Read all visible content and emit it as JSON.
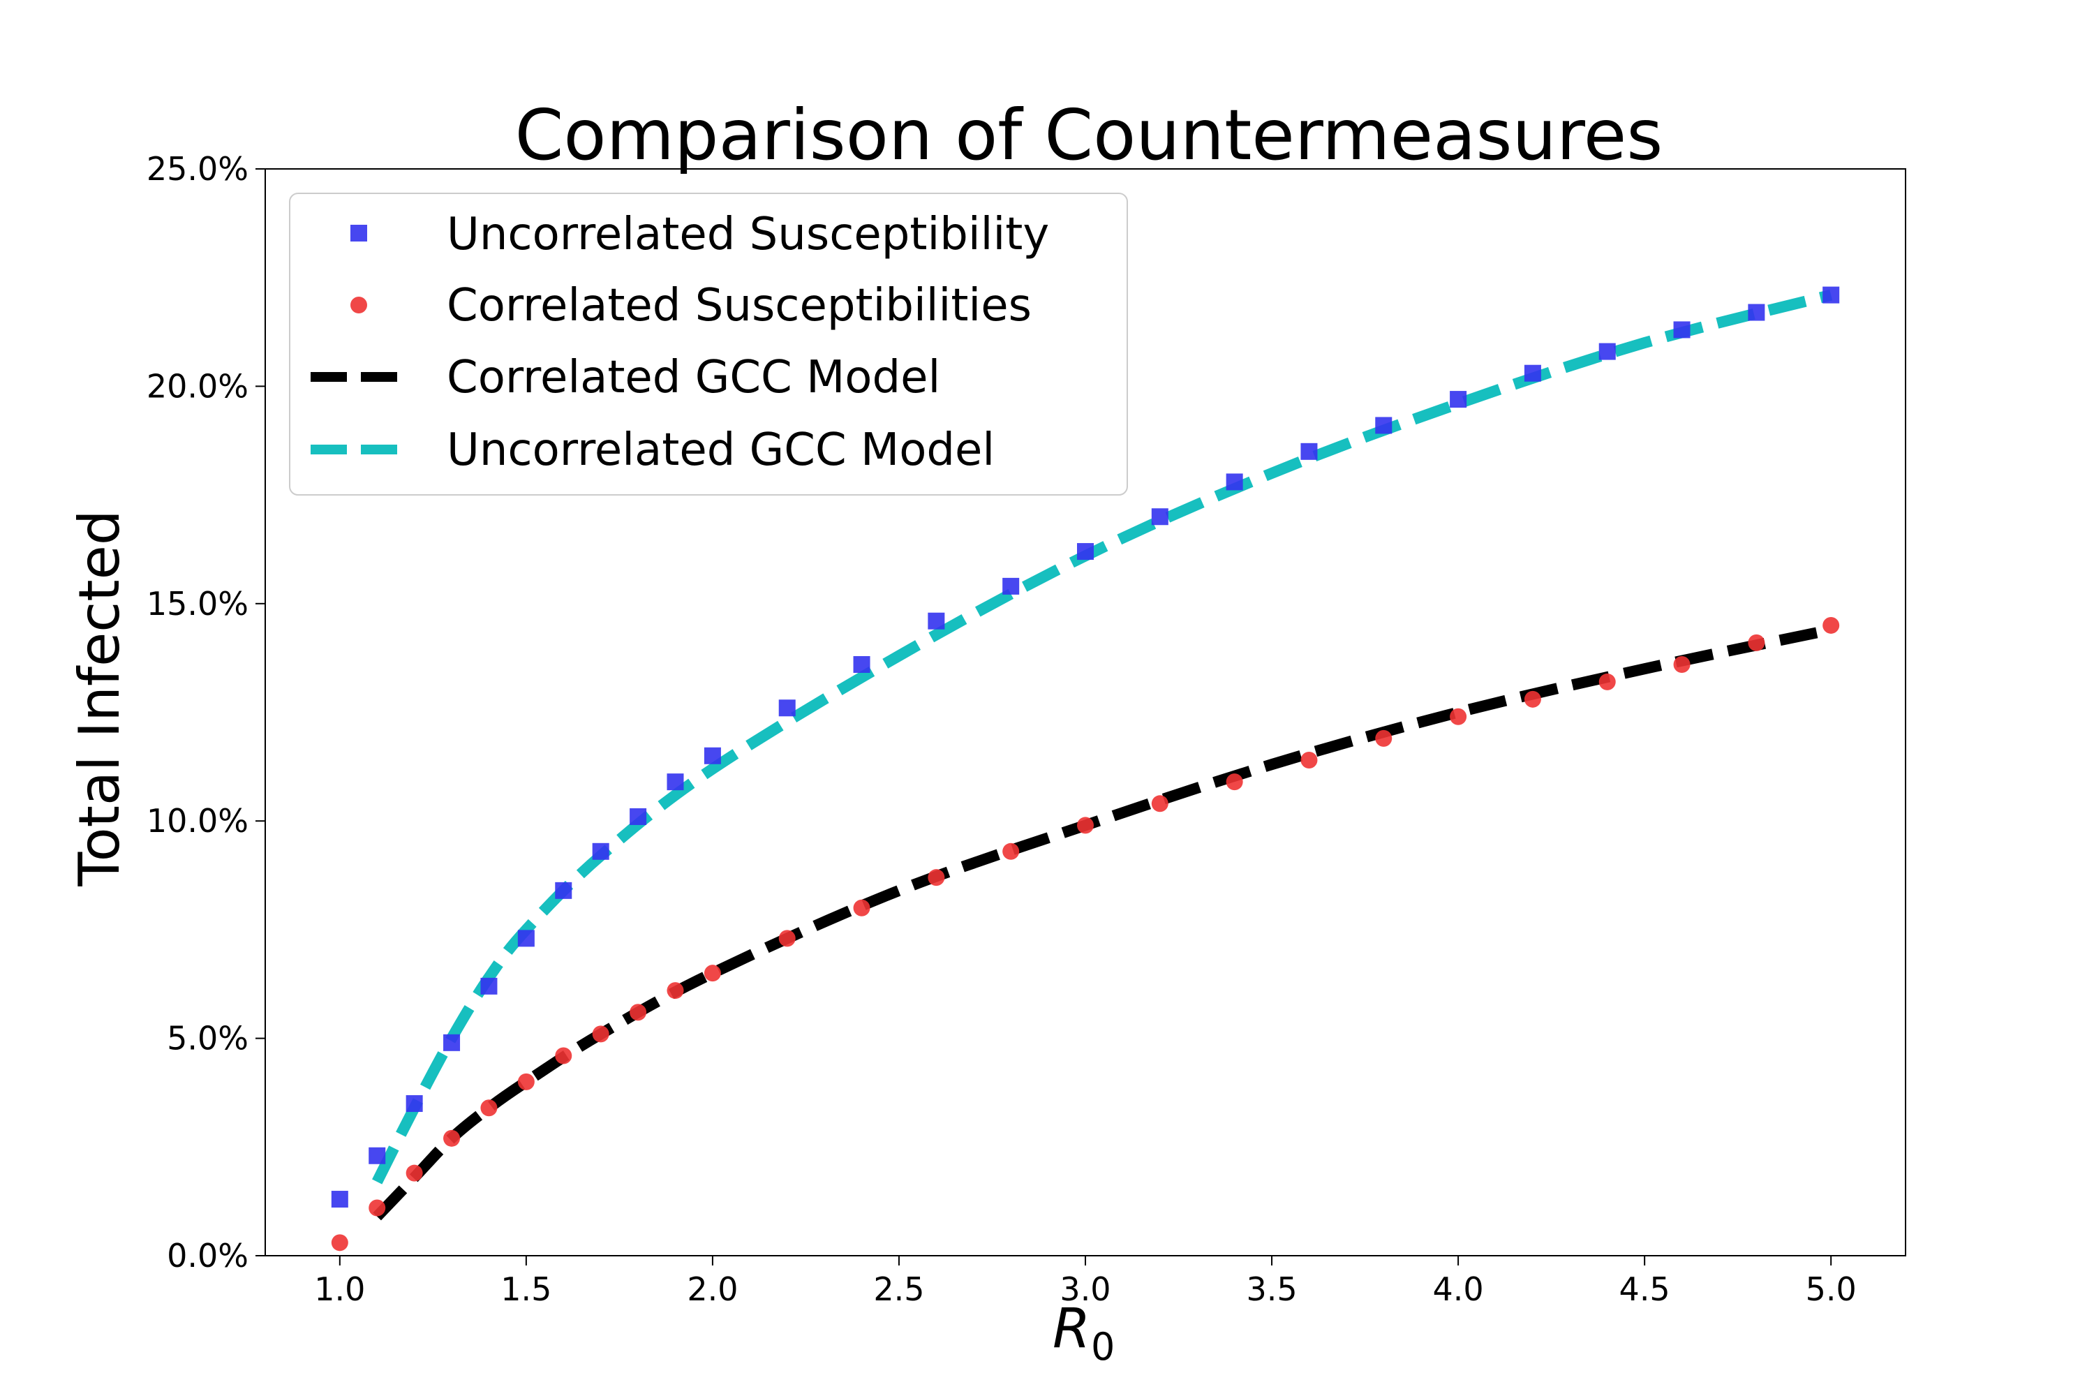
{
  "chart_data": {
    "type": "line",
    "title": "Comparison of Countermeasures",
    "xlabel": "R",
    "xlabel_subscript": "0",
    "ylabel": "Total Infected",
    "xlim": [
      0.8,
      5.2
    ],
    "ylim": [
      0,
      25
    ],
    "x_ticks": [
      1.0,
      1.5,
      2.0,
      2.5,
      3.0,
      3.5,
      4.0,
      4.5,
      5.0
    ],
    "x_tick_labels": [
      "1.0",
      "1.5",
      "2.0",
      "2.5",
      "3.0",
      "3.5",
      "4.0",
      "4.5",
      "5.0"
    ],
    "y_ticks": [
      0,
      5,
      10,
      15,
      20,
      25
    ],
    "y_tick_labels": [
      "0.0%",
      "5.0%",
      "10.0%",
      "15.0%",
      "20.0%",
      "25.0%"
    ],
    "legend_position": "top-left",
    "grid": false,
    "series": [
      {
        "name": "Uncorrelated Susceptibility",
        "style": "markers",
        "marker": "square",
        "color": "#3333ee",
        "x": [
          1.0,
          1.1,
          1.2,
          1.3,
          1.4,
          1.5,
          1.6,
          1.7,
          1.8,
          1.9,
          2.0,
          2.2,
          2.4,
          2.6,
          2.8,
          3.0,
          3.2,
          3.4,
          3.6,
          3.8,
          4.0,
          4.2,
          4.4,
          4.6,
          4.8,
          5.0
        ],
        "y": [
          1.3,
          2.3,
          3.5,
          4.9,
          6.2,
          7.3,
          8.4,
          9.3,
          10.1,
          10.9,
          11.5,
          12.6,
          13.6,
          14.6,
          15.4,
          16.2,
          17.0,
          17.8,
          18.5,
          19.1,
          19.7,
          20.3,
          20.8,
          21.3,
          21.7,
          22.1
        ]
      },
      {
        "name": "Correlated Susceptibilities",
        "style": "markers",
        "marker": "circle",
        "color": "#ee3333",
        "x": [
          1.0,
          1.1,
          1.2,
          1.3,
          1.4,
          1.5,
          1.6,
          1.7,
          1.8,
          1.9,
          2.0,
          2.2,
          2.4,
          2.6,
          2.8,
          3.0,
          3.2,
          3.4,
          3.6,
          3.8,
          4.0,
          4.2,
          4.4,
          4.6,
          4.8,
          5.0
        ],
        "y": [
          0.3,
          1.1,
          1.9,
          2.7,
          3.4,
          4.0,
          4.6,
          5.1,
          5.6,
          6.1,
          6.5,
          7.3,
          8.0,
          8.7,
          9.3,
          9.9,
          10.4,
          10.9,
          11.4,
          11.9,
          12.4,
          12.8,
          13.2,
          13.6,
          14.1,
          14.5
        ]
      },
      {
        "name": "Correlated GCC Model",
        "style": "dashed",
        "color": "#000000",
        "x": [
          1.1,
          1.2,
          1.3,
          1.4,
          1.5,
          1.7,
          2.0,
          2.5,
          3.0,
          3.5,
          4.0,
          4.5,
          5.0
        ],
        "y": [
          0.9,
          1.8,
          2.7,
          3.4,
          4.0,
          5.1,
          6.5,
          8.4,
          9.9,
          11.3,
          12.5,
          13.5,
          14.4
        ]
      },
      {
        "name": "Uncorrelated GCC Model",
        "style": "dashed",
        "color": "#17bfbf",
        "x": [
          1.1,
          1.2,
          1.3,
          1.4,
          1.5,
          1.7,
          2.0,
          2.5,
          3.0,
          3.5,
          4.0,
          4.5,
          5.0
        ],
        "y": [
          1.7,
          3.4,
          5.0,
          6.4,
          7.5,
          9.2,
          11.2,
          13.8,
          16.1,
          18.0,
          19.6,
          21.0,
          22.1
        ]
      }
    ]
  }
}
